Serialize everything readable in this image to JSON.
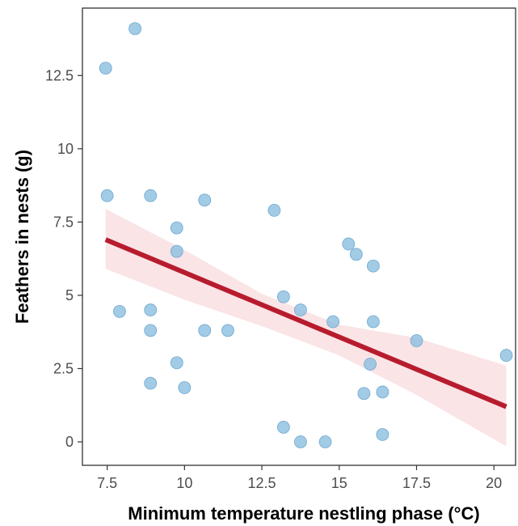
{
  "chart_data": {
    "type": "scatter",
    "title": "",
    "xlabel": "Minimum temperature nestling phase (°C)",
    "ylabel": "Feathers in nests (g)",
    "xlim": [
      6.7,
      20.7
    ],
    "ylim": [
      -0.8,
      14.8
    ],
    "x_ticks": [
      7.5,
      10,
      12.5,
      15,
      17.5,
      20
    ],
    "x_tick_labels": [
      "7.5",
      "10",
      "12.5",
      "15",
      "17.5",
      "20"
    ],
    "y_ticks": [
      0,
      2.5,
      5,
      7.5,
      10,
      12.5
    ],
    "y_tick_labels": [
      "0",
      "2.5",
      "5",
      "7.5",
      "10",
      "12.5"
    ],
    "grid": false,
    "point_color": "#8ec0e0",
    "point_edge_color": "#6fa8cf",
    "line_color": "#b71c2e",
    "ribbon_color": "#f9dfe2",
    "points": [
      {
        "x": 7.45,
        "y": 12.75
      },
      {
        "x": 8.4,
        "y": 14.1
      },
      {
        "x": 7.5,
        "y": 8.4
      },
      {
        "x": 8.9,
        "y": 8.4
      },
      {
        "x": 7.9,
        "y": 4.45
      },
      {
        "x": 8.9,
        "y": 4.5
      },
      {
        "x": 8.9,
        "y": 3.8
      },
      {
        "x": 8.9,
        "y": 2.0
      },
      {
        "x": 9.75,
        "y": 7.3
      },
      {
        "x": 9.75,
        "y": 6.5
      },
      {
        "x": 9.75,
        "y": 2.7
      },
      {
        "x": 10.0,
        "y": 1.85
      },
      {
        "x": 10.65,
        "y": 8.25
      },
      {
        "x": 10.65,
        "y": 3.8
      },
      {
        "x": 11.4,
        "y": 3.8
      },
      {
        "x": 12.9,
        "y": 7.9
      },
      {
        "x": 13.2,
        "y": 4.95
      },
      {
        "x": 13.75,
        "y": 4.5
      },
      {
        "x": 13.2,
        "y": 0.5
      },
      {
        "x": 13.75,
        "y": 0.0
      },
      {
        "x": 14.55,
        "y": 0.0
      },
      {
        "x": 14.8,
        "y": 4.1
      },
      {
        "x": 15.3,
        "y": 6.75
      },
      {
        "x": 15.55,
        "y": 6.4
      },
      {
        "x": 16.1,
        "y": 6.0
      },
      {
        "x": 16.1,
        "y": 4.1
      },
      {
        "x": 16.0,
        "y": 2.65
      },
      {
        "x": 15.8,
        "y": 1.65
      },
      {
        "x": 16.4,
        "y": 1.7
      },
      {
        "x": 16.4,
        "y": 0.25
      },
      {
        "x": 17.5,
        "y": 3.45
      },
      {
        "x": 20.4,
        "y": 2.95
      }
    ],
    "fit_line": {
      "x": [
        7.45,
        20.4
      ],
      "y": [
        6.9,
        1.2
      ]
    },
    "confidence_band": {
      "x": [
        7.45,
        10,
        12.5,
        15,
        17.5,
        20.4
      ],
      "lower": [
        5.9,
        4.85,
        3.95,
        2.95,
        1.6,
        -0.15
      ],
      "upper": [
        7.95,
        6.55,
        5.05,
        4.0,
        3.55,
        2.6
      ]
    }
  }
}
